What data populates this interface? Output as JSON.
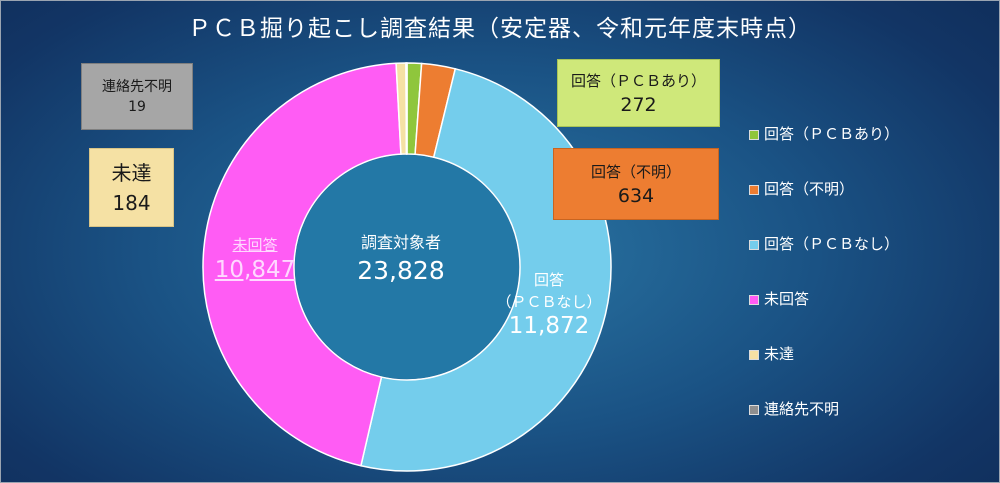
{
  "chart_data": {
    "type": "pie",
    "title": "ＰＣＢ掘り起こし調査結果（安定器、令和元年度末時点）",
    "center_label": "調査対象者",
    "total": "23,828",
    "legend_position": "right",
    "slices": [
      {
        "name": "回答（ＰＣＢあり）",
        "value": 272,
        "display": "272",
        "color": "#8fc63c"
      },
      {
        "name": "回答（不明）",
        "value": 634,
        "display": "634",
        "color": "#ed7d31"
      },
      {
        "name": "回答（ＰＣＢなし）",
        "value": 11872,
        "display": "11,872",
        "color": "#74cdec"
      },
      {
        "name": "未回答",
        "value": 10847,
        "display": "10,847",
        "color": "#ff5cf4"
      },
      {
        "name": "未達",
        "value": 184,
        "display": "184",
        "color": "#f5e1a4"
      },
      {
        "name": "連絡先不明",
        "value": 19,
        "display": "19",
        "color": "#8f8f8f"
      }
    ],
    "labels": {
      "pcb_yes": {
        "name": "回答（ＰＣＢあり）",
        "value": "272"
      },
      "pcb_unknown": {
        "name": "回答（不明）",
        "value": "634"
      },
      "pcb_no": {
        "name_line1": "回答",
        "name_line2": "（ＰＣＢなし）",
        "value": "11,872"
      },
      "unanswered": {
        "name": "未回答",
        "value": "10,847"
      },
      "unreached": {
        "name": "未達",
        "value": "184"
      },
      "unknown_contact": {
        "name": "連絡先不明",
        "value": "19"
      }
    }
  }
}
